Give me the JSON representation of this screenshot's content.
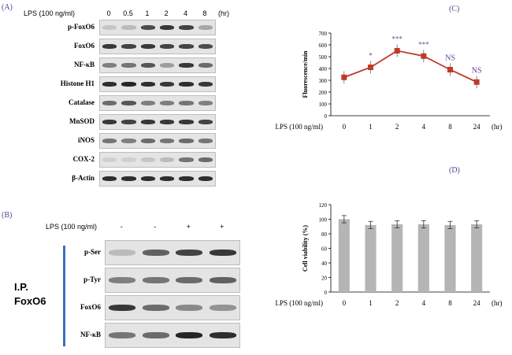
{
  "panel_a": {
    "letter": "(A)",
    "treatment_label": "LPS (100 ng/ml)",
    "timepoints": [
      "0",
      "0.5",
      "1",
      "2",
      "4",
      "8"
    ],
    "unit": "(hr)",
    "blots": [
      {
        "label": "p-FoxO6",
        "intensity": [
          0.15,
          0.2,
          0.75,
          0.85,
          0.8,
          0.3
        ]
      },
      {
        "label": "FoxO6",
        "intensity": [
          0.85,
          0.8,
          0.85,
          0.8,
          0.8,
          0.75
        ]
      },
      {
        "label": "NF-κB",
        "intensity": [
          0.5,
          0.55,
          0.7,
          0.35,
          0.85,
          0.6
        ]
      },
      {
        "label": "Histone H1",
        "intensity": [
          0.9,
          0.95,
          0.9,
          0.85,
          0.9,
          0.85
        ]
      },
      {
        "label": "Catalase",
        "intensity": [
          0.6,
          0.7,
          0.5,
          0.5,
          0.55,
          0.5
        ]
      },
      {
        "label": "MnSOD",
        "intensity": [
          0.85,
          0.8,
          0.85,
          0.85,
          0.85,
          0.8
        ]
      },
      {
        "label": "iNOS",
        "intensity": [
          0.55,
          0.5,
          0.6,
          0.55,
          0.6,
          0.55
        ]
      },
      {
        "label": "COX-2",
        "intensity": [
          0.1,
          0.1,
          0.15,
          0.2,
          0.55,
          0.6
        ]
      },
      {
        "label": "β-Actin",
        "intensity": [
          0.9,
          0.9,
          0.9,
          0.9,
          0.9,
          0.9
        ]
      }
    ]
  },
  "panel_b": {
    "letter": "(B)",
    "treatment_label": "LPS (100 ng/ml)",
    "lanes": [
      "-",
      "-",
      "+",
      "+"
    ],
    "ip_label_1": "I.P.",
    "ip_label_2": "FoxO6",
    "blots": [
      {
        "label": "p-Ser",
        "intensity": [
          0.2,
          0.65,
          0.8,
          0.85
        ]
      },
      {
        "label": "p-Tyr",
        "intensity": [
          0.5,
          0.55,
          0.6,
          0.65
        ]
      },
      {
        "label": "FoxO6",
        "intensity": [
          0.85,
          0.6,
          0.45,
          0.4
        ]
      },
      {
        "label": "NF-κB",
        "intensity": [
          0.55,
          0.6,
          0.95,
          0.9
        ]
      }
    ]
  },
  "chart_data": [
    {
      "panel": "(C)",
      "type": "line",
      "x_tick_prefix": "LPS (100 ng/ml)",
      "categories": [
        "0",
        "1",
        "2",
        "4",
        "8",
        "24"
      ],
      "x_unit": "(hr)",
      "ylabel": "Fluorescence/min",
      "ylim": [
        0,
        700
      ],
      "yticks": [
        0,
        100,
        200,
        300,
        400,
        500,
        600,
        700
      ],
      "values": [
        325,
        410,
        550,
        505,
        390,
        285
      ],
      "annotations": [
        "",
        "*",
        "***",
        "***",
        "NS",
        "NS"
      ],
      "color": "#c0392b",
      "annotation_color": "#6b3fa0"
    },
    {
      "panel": "(D)",
      "type": "bar",
      "x_tick_prefix": "LPS (100 ng/ml)",
      "categories": [
        "0",
        "1",
        "2",
        "4",
        "8",
        "24"
      ],
      "x_unit": "(hr)",
      "ylabel": "Cell viability (%)",
      "ylim": [
        0,
        120
      ],
      "yticks": [
        0,
        20,
        40,
        60,
        80,
        100,
        120
      ],
      "values": [
        100,
        92,
        93,
        93,
        92,
        93
      ],
      "errors": [
        5,
        5,
        5,
        5,
        5,
        5
      ],
      "color": "#b5b5b5"
    }
  ]
}
